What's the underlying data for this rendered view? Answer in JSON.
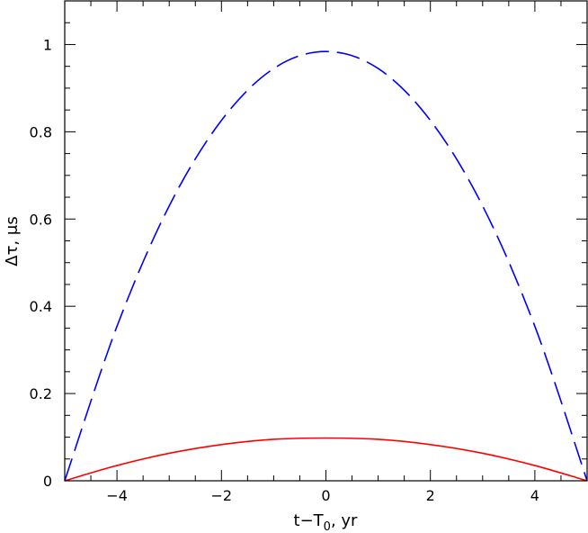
{
  "chart_data": {
    "type": "line",
    "title": "",
    "xlabel_parts": {
      "base": "t−T",
      "subscript": "0",
      "suffix": ", yr"
    },
    "ylabel": "Δτ, μs",
    "xlim": [
      -5,
      5
    ],
    "ylim": [
      0,
      1.1
    ],
    "x_major_ticks": [
      -4,
      -2,
      0,
      2,
      4
    ],
    "x_minor_step": 0.5,
    "y_major_ticks": [
      0,
      0.2,
      0.4,
      0.6,
      0.8,
      1
    ],
    "y_minor_step": 0.05,
    "x_tick_labels": [
      "−4",
      "−2",
      "0",
      "2",
      "4"
    ],
    "y_tick_labels": [
      "0",
      "0.2",
      "0.4",
      "0.6",
      "0.8",
      "1"
    ],
    "grid": false,
    "legend": "none",
    "series": [
      {
        "style": "dashed",
        "color": "#0000ff",
        "x": [
          -5,
          -4,
          -3,
          -2,
          -1,
          0,
          1,
          2,
          3,
          4,
          5
        ],
        "y": [
          0,
          0.354,
          0.63,
          0.826,
          0.945,
          0.984,
          0.945,
          0.826,
          0.63,
          0.354,
          0
        ]
      },
      {
        "style": "solid",
        "color": "#ff0000",
        "x": [
          -5,
          -4,
          -3,
          -2,
          -1,
          0,
          1,
          2,
          3,
          4,
          5
        ],
        "y": [
          0,
          0.035,
          0.063,
          0.083,
          0.095,
          0.098,
          0.095,
          0.083,
          0.063,
          0.035,
          0
        ]
      }
    ]
  }
}
